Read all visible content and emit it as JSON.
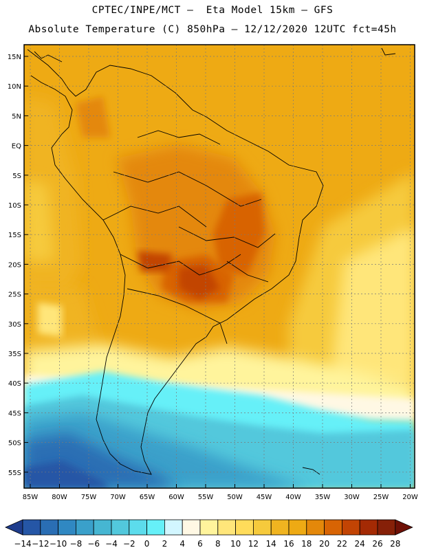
{
  "header": {
    "line1": "CPTEC/INPE/MCT –  Eta Model 15km – GFS",
    "line2": "Absolute Temperature (C) 850hPa – 12/12/2020 12UTC fct=45h"
  },
  "map": {
    "lat_ticks": [
      "15N",
      "10N",
      "5N",
      "EQ",
      "5S",
      "10S",
      "15S",
      "20S",
      "25S",
      "30S",
      "35S",
      "40S",
      "45S",
      "50S",
      "55S"
    ],
    "lon_ticks": [
      "85W",
      "80W",
      "75W",
      "70W",
      "65W",
      "60W",
      "55W",
      "50W",
      "45W",
      "40W",
      "35W",
      "30W",
      "25W",
      "20W"
    ]
  },
  "legend": {
    "labels": [
      "-14",
      "-12",
      "-10",
      "-8",
      "-6",
      "-4",
      "-2",
      "0",
      "2",
      "4",
      "6",
      "8",
      "10",
      "12",
      "14",
      "16",
      "18",
      "20",
      "22",
      "24",
      "26",
      "28"
    ],
    "colors": [
      "#1e3c8c",
      "#2556a6",
      "#2a6eb4",
      "#3088c2",
      "#3aa0ca",
      "#46b6d2",
      "#52c8dc",
      "#5cdcec",
      "#66f0f8",
      "#d2f6ff",
      "#fff8e4",
      "#fff49c",
      "#ffe67a",
      "#ffdc5a",
      "#f6ca3c",
      "#f0b420",
      "#eeaa14",
      "#e4880a",
      "#d86404",
      "#c24404",
      "#a42a04",
      "#862008",
      "#6e1006"
    ]
  }
}
